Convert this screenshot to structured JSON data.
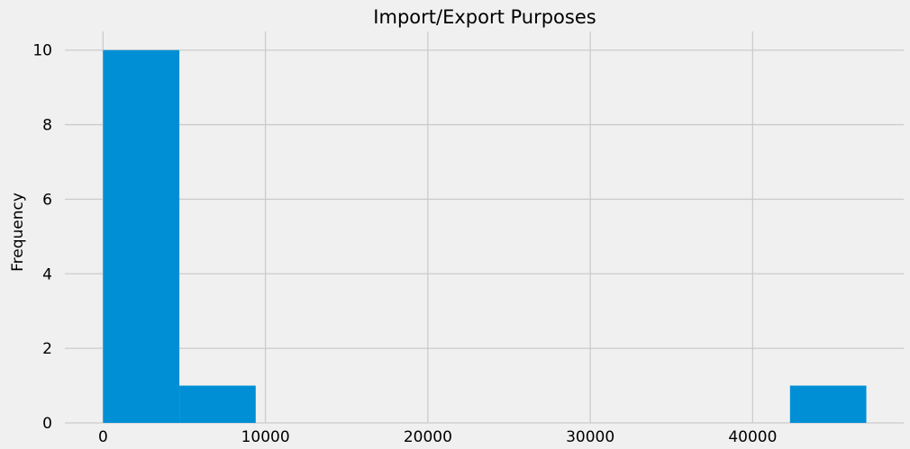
{
  "chart_data": {
    "type": "bar",
    "title": "Import/Export Purposes",
    "xlabel": "",
    "ylabel": "Frequency",
    "xlim": [
      -2350,
      49300
    ],
    "ylim": [
      0,
      10.5
    ],
    "x_ticks": [
      0,
      10000,
      20000,
      30000,
      40000
    ],
    "y_ticks": [
      0,
      2,
      4,
      6,
      8,
      10
    ],
    "grid": true,
    "bins": [
      {
        "start": 0,
        "end": 4700,
        "count": 10
      },
      {
        "start": 4700,
        "end": 9400,
        "count": 1
      },
      {
        "start": 9400,
        "end": 14100,
        "count": 0
      },
      {
        "start": 14100,
        "end": 18800,
        "count": 0
      },
      {
        "start": 18800,
        "end": 23500,
        "count": 0
      },
      {
        "start": 23500,
        "end": 28200,
        "count": 0
      },
      {
        "start": 28200,
        "end": 32900,
        "count": 0
      },
      {
        "start": 32900,
        "end": 37600,
        "count": 0
      },
      {
        "start": 37600,
        "end": 42300,
        "count": 0
      },
      {
        "start": 42300,
        "end": 47000,
        "count": 1
      }
    ],
    "colors": {
      "bar": "#008fd5",
      "grid": "#cbcbcb",
      "background": "#f0f0f0"
    }
  }
}
